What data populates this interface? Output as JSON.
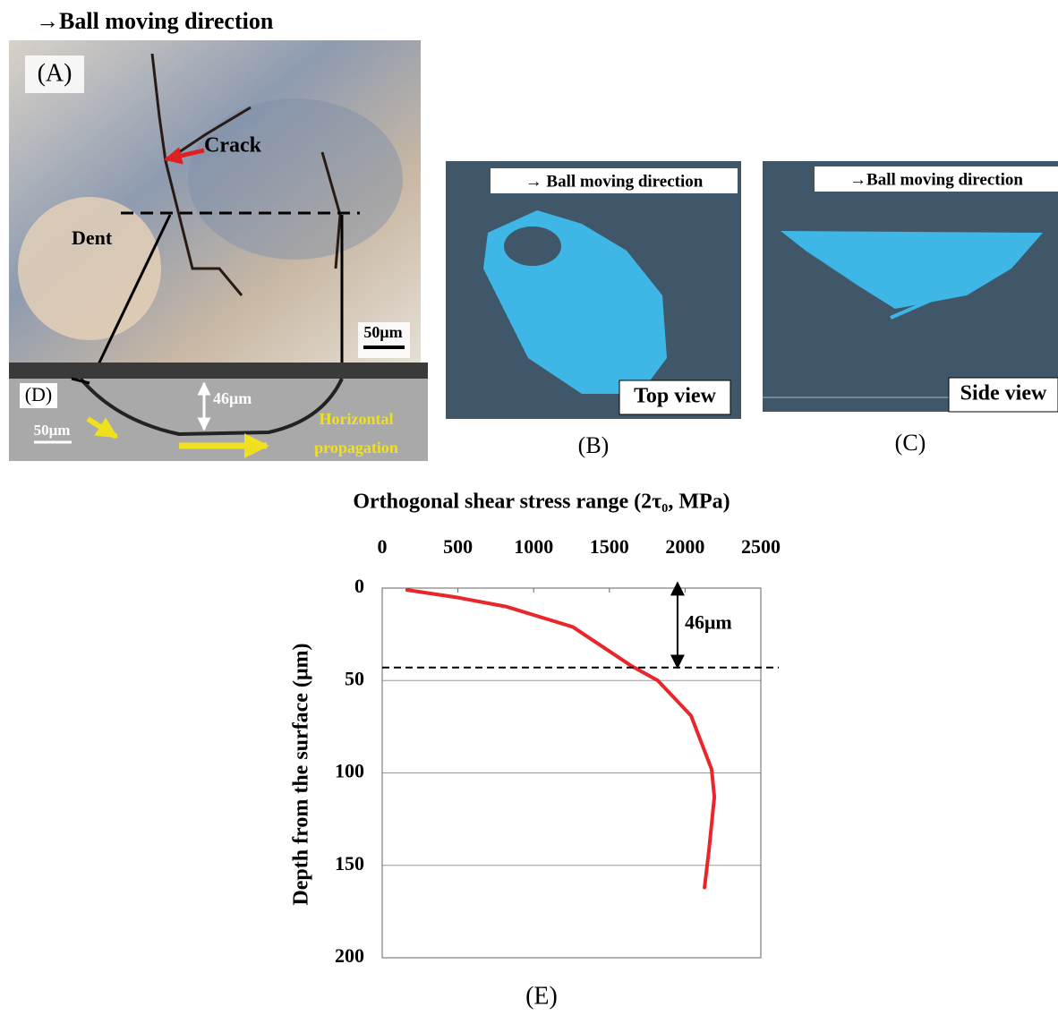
{
  "panels": {
    "a": {
      "header": "→Ball moving direction",
      "label": "(A)",
      "crack": "Crack",
      "dent": "Dent",
      "scale": "50μm"
    },
    "d": {
      "label": "(D)",
      "depth": "46μm",
      "scale": "50μm",
      "propagation": [
        "Horizontal",
        "propagation"
      ]
    },
    "b": {
      "header": "→ Ball moving  direction",
      "view": "Top view",
      "label": "(B)"
    },
    "c": {
      "header": "→Ball moving direction",
      "view": "Side view",
      "label": "(C)"
    },
    "e": {
      "label": "(E)"
    }
  },
  "chart_data": {
    "type": "line",
    "title": "Orthogonal shear stress range (2τ₀, MPa)",
    "y_label": "Depth from the surface (μm)",
    "x": [
      165,
      490,
      816,
      1259,
      1643,
      1820,
      2039,
      2175,
      2193,
      2157,
      2128
    ],
    "values": [
      1,
      5,
      10,
      21,
      42,
      50,
      69,
      98,
      113,
      142,
      162
    ],
    "color": "#e8262b",
    "xlim": [
      0,
      2500
    ],
    "xticks": [
      0,
      500,
      1000,
      1500,
      2000,
      2500
    ],
    "ylim": [
      0,
      200
    ],
    "yticks": [
      0,
      50,
      100,
      150,
      200
    ],
    "grid": true,
    "hline": 43,
    "annotation": {
      "text": "46μm",
      "x": 1950
    }
  }
}
